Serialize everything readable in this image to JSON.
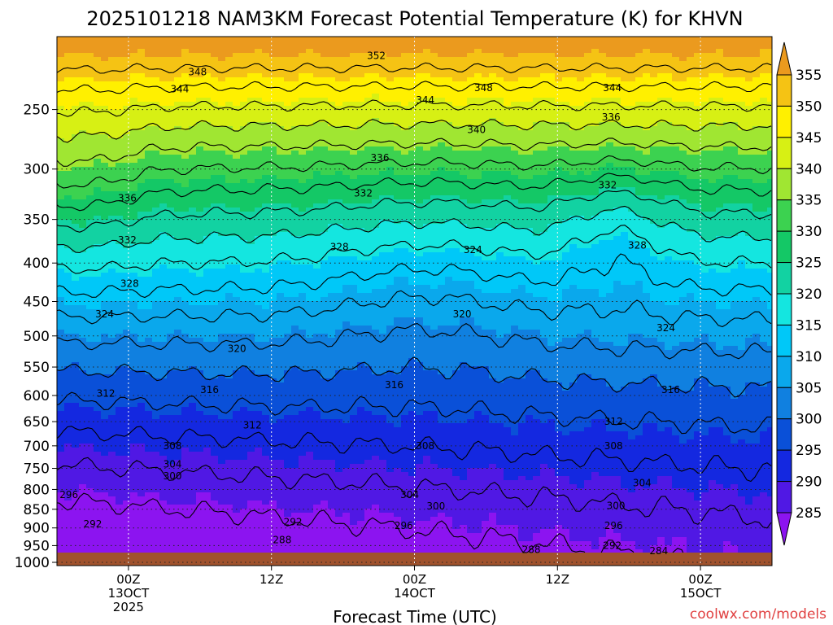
{
  "chart_data": {
    "type": "heatmap",
    "title": "2025101218 NAM3KM Forecast Potential Temperature (K) for KHVN",
    "xlabel": "Forecast Time (UTC)",
    "ylabel": "",
    "y_axis": {
      "scale": "log-pressure",
      "units": "hPa",
      "range": [
        1010,
        200
      ],
      "ticks": [
        250,
        300,
        350,
        400,
        450,
        500,
        550,
        600,
        650,
        700,
        750,
        800,
        850,
        900,
        950,
        1000
      ]
    },
    "x_axis": {
      "range_hours": [
        0,
        60
      ],
      "ticks": [
        {
          "hour": 6,
          "label": "00Z",
          "date": "13OCT",
          "year": "2025"
        },
        {
          "hour": 18,
          "label": "12Z",
          "date": "",
          "year": ""
        },
        {
          "hour": 30,
          "label": "00Z",
          "date": "14OCT",
          "year": ""
        },
        {
          "hour": 42,
          "label": "12Z",
          "date": "",
          "year": ""
        },
        {
          "hour": 54,
          "label": "00Z",
          "date": "15OCT",
          "year": ""
        }
      ]
    },
    "colorbar": {
      "levels": [
        355,
        350,
        345,
        340,
        335,
        330,
        325,
        320,
        315,
        310,
        305,
        300,
        295,
        290,
        285
      ],
      "colors": [
        "#eb9a1e",
        "#f5c314",
        "#fff000",
        "#d7f014",
        "#a0e632",
        "#3cd250",
        "#14c866",
        "#12d2a2",
        "#14e6e0",
        "#00c8f8",
        "#0aa8ec",
        "#1080e0",
        "#0a50d8",
        "#1428e0",
        "#5018e4",
        "#8c14f0"
      ]
    },
    "contour_levels": [
      284,
      288,
      292,
      296,
      300,
      304,
      308,
      312,
      316,
      320,
      324,
      328,
      332,
      336,
      340,
      344,
      348,
      352
    ],
    "contour_labels": [
      {
        "value": "352",
        "hour": 26.8,
        "p": 212
      },
      {
        "value": "348",
        "hour": 11.8,
        "p": 223
      },
      {
        "value": "348",
        "hour": 35.8,
        "p": 234
      },
      {
        "value": "344",
        "hour": 10.3,
        "p": 235
      },
      {
        "value": "344",
        "hour": 30.9,
        "p": 243
      },
      {
        "value": "344",
        "hour": 46.6,
        "p": 234
      },
      {
        "value": "336",
        "hour": 46.5,
        "p": 256
      },
      {
        "value": "340",
        "hour": 35.2,
        "p": 266
      },
      {
        "value": "336",
        "hour": 27.1,
        "p": 290
      },
      {
        "value": "336",
        "hour": 5.9,
        "p": 328
      },
      {
        "value": "332",
        "hour": 25.7,
        "p": 323
      },
      {
        "value": "332",
        "hour": 46.2,
        "p": 315
      },
      {
        "value": "332",
        "hour": 5.9,
        "p": 373
      },
      {
        "value": "328",
        "hour": 23.7,
        "p": 381
      },
      {
        "value": "324",
        "hour": 34.9,
        "p": 384
      },
      {
        "value": "328",
        "hour": 48.7,
        "p": 379
      },
      {
        "value": "328",
        "hour": 6.1,
        "p": 426
      },
      {
        "value": "324",
        "hour": 4.0,
        "p": 468
      },
      {
        "value": "320",
        "hour": 34.0,
        "p": 468
      },
      {
        "value": "324",
        "hour": 51.1,
        "p": 488
      },
      {
        "value": "320",
        "hour": 15.1,
        "p": 520
      },
      {
        "value": "316",
        "hour": 28.3,
        "p": 581
      },
      {
        "value": "316",
        "hour": 12.8,
        "p": 590
      },
      {
        "value": "316",
        "hour": 51.5,
        "p": 590
      },
      {
        "value": "312",
        "hour": 4.1,
        "p": 596
      },
      {
        "value": "312",
        "hour": 16.4,
        "p": 657
      },
      {
        "value": "312",
        "hour": 46.7,
        "p": 650
      },
      {
        "value": "308",
        "hour": 9.7,
        "p": 700
      },
      {
        "value": "308",
        "hour": 30.9,
        "p": 700
      },
      {
        "value": "308",
        "hour": 46.7,
        "p": 700
      },
      {
        "value": "304",
        "hour": 9.7,
        "p": 741
      },
      {
        "value": "300",
        "hour": 9.7,
        "p": 768
      },
      {
        "value": "304",
        "hour": 49.1,
        "p": 784
      },
      {
        "value": "296",
        "hour": 1.0,
        "p": 813
      },
      {
        "value": "304",
        "hour": 29.6,
        "p": 813
      },
      {
        "value": "300",
        "hour": 31.8,
        "p": 842
      },
      {
        "value": "300",
        "hour": 46.9,
        "p": 841
      },
      {
        "value": "292",
        "hour": 3.0,
        "p": 889
      },
      {
        "value": "292",
        "hour": 19.8,
        "p": 884
      },
      {
        "value": "296",
        "hour": 29.1,
        "p": 894
      },
      {
        "value": "296",
        "hour": 46.7,
        "p": 894
      },
      {
        "value": "288",
        "hour": 18.9,
        "p": 934
      },
      {
        "value": "292",
        "hour": 46.6,
        "p": 950
      },
      {
        "value": "288",
        "hour": 39.8,
        "p": 962
      },
      {
        "value": "284",
        "hour": 50.5,
        "p": 966
      }
    ],
    "watermark": "coolwx.com/models"
  }
}
